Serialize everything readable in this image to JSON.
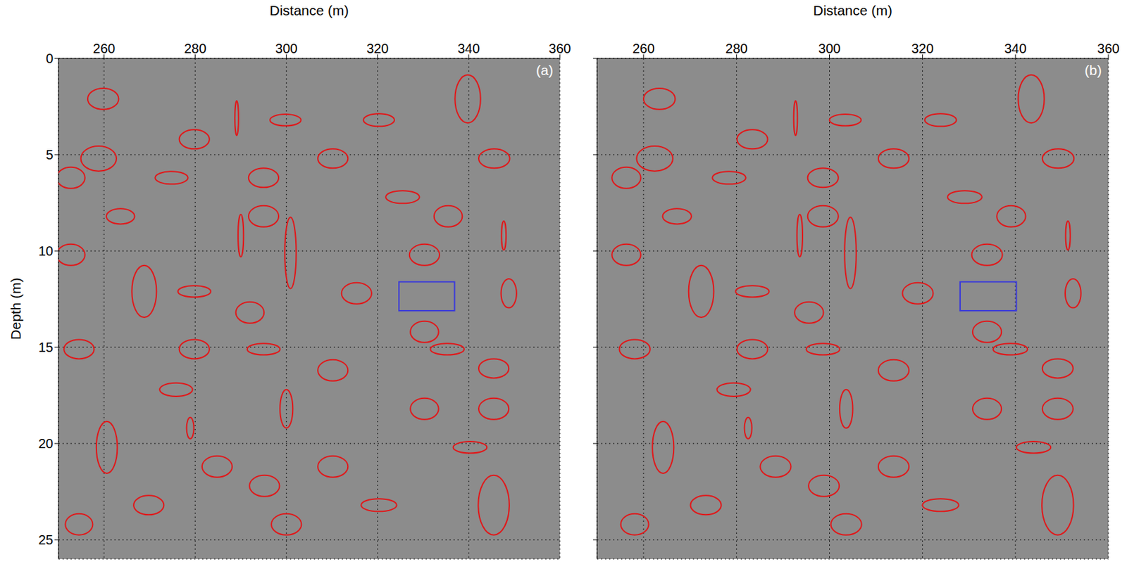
{
  "chart_data": [
    {
      "type": "annotation",
      "panel_label": "(a)",
      "x_label": "Distance (m)",
      "y_label": "Depth (m)",
      "xlim": [
        250,
        360
      ],
      "ylim": [
        0,
        26
      ],
      "xticks": [
        260,
        280,
        300,
        320,
        340,
        360
      ],
      "yticks": [
        0,
        5,
        10,
        15,
        20,
        25
      ],
      "grid": true,
      "series": [
        {
          "type": "ellipse",
          "color": "#e0191b",
          "values": [
            {
              "x": 259.8,
              "y": 2.1,
              "rx": 3.4,
              "ry": 0.55
            },
            {
              "x": 289.1,
              "y": 3.1,
              "rx": 0.4,
              "ry": 0.9
            },
            {
              "x": 299.8,
              "y": 3.2,
              "rx": 3.4,
              "ry": 0.3
            },
            {
              "x": 320.3,
              "y": 3.2,
              "rx": 3.4,
              "ry": 0.33
            },
            {
              "x": 339.8,
              "y": 2.1,
              "rx": 2.8,
              "ry": 1.25
            },
            {
              "x": 279.8,
              "y": 4.2,
              "rx": 3.3,
              "ry": 0.5
            },
            {
              "x": 258.8,
              "y": 5.2,
              "rx": 3.9,
              "ry": 0.65
            },
            {
              "x": 310.2,
              "y": 5.2,
              "rx": 3.3,
              "ry": 0.5
            },
            {
              "x": 345.6,
              "y": 5.2,
              "rx": 3.4,
              "ry": 0.5
            },
            {
              "x": 252.7,
              "y": 6.2,
              "rx": 3.1,
              "ry": 0.55
            },
            {
              "x": 274.8,
              "y": 6.2,
              "rx": 3.6,
              "ry": 0.33
            },
            {
              "x": 295.0,
              "y": 6.2,
              "rx": 3.3,
              "ry": 0.5
            },
            {
              "x": 325.5,
              "y": 7.2,
              "rx": 3.7,
              "ry": 0.33
            },
            {
              "x": 263.6,
              "y": 8.2,
              "rx": 3.1,
              "ry": 0.4
            },
            {
              "x": 295.0,
              "y": 8.2,
              "rx": 3.3,
              "ry": 0.55
            },
            {
              "x": 335.5,
              "y": 8.2,
              "rx": 3.1,
              "ry": 0.55
            },
            {
              "x": 290.0,
              "y": 9.2,
              "rx": 0.6,
              "ry": 1.1
            },
            {
              "x": 300.9,
              "y": 10.1,
              "rx": 1.25,
              "ry": 1.85
            },
            {
              "x": 347.7,
              "y": 9.2,
              "rx": 0.5,
              "ry": 0.75
            },
            {
              "x": 252.7,
              "y": 10.2,
              "rx": 3.1,
              "ry": 0.55
            },
            {
              "x": 330.3,
              "y": 10.2,
              "rx": 3.3,
              "ry": 0.55
            },
            {
              "x": 268.8,
              "y": 12.1,
              "rx": 2.7,
              "ry": 1.35
            },
            {
              "x": 279.8,
              "y": 12.1,
              "rx": 3.6,
              "ry": 0.3
            },
            {
              "x": 315.4,
              "y": 12.2,
              "rx": 3.3,
              "ry": 0.55
            },
            {
              "x": 348.8,
              "y": 12.2,
              "rx": 1.7,
              "ry": 0.75
            },
            {
              "x": 292.0,
              "y": 13.2,
              "rx": 3.1,
              "ry": 0.55
            },
            {
              "x": 330.3,
              "y": 14.2,
              "rx": 3.1,
              "ry": 0.55
            },
            {
              "x": 254.5,
              "y": 15.1,
              "rx": 3.3,
              "ry": 0.5
            },
            {
              "x": 279.8,
              "y": 15.1,
              "rx": 3.3,
              "ry": 0.5
            },
            {
              "x": 295.0,
              "y": 15.1,
              "rx": 3.6,
              "ry": 0.3
            },
            {
              "x": 335.3,
              "y": 15.1,
              "rx": 3.7,
              "ry": 0.3
            },
            {
              "x": 310.2,
              "y": 16.2,
              "rx": 3.3,
              "ry": 0.55
            },
            {
              "x": 345.5,
              "y": 16.1,
              "rx": 3.3,
              "ry": 0.5
            },
            {
              "x": 275.8,
              "y": 17.2,
              "rx": 3.6,
              "ry": 0.35
            },
            {
              "x": 300.0,
              "y": 18.2,
              "rx": 1.4,
              "ry": 1.0
            },
            {
              "x": 330.3,
              "y": 18.2,
              "rx": 3.1,
              "ry": 0.55
            },
            {
              "x": 345.5,
              "y": 18.2,
              "rx": 3.3,
              "ry": 0.55
            },
            {
              "x": 278.9,
              "y": 19.2,
              "rx": 0.8,
              "ry": 0.55
            },
            {
              "x": 260.6,
              "y": 20.2,
              "rx": 2.3,
              "ry": 1.35
            },
            {
              "x": 340.3,
              "y": 20.2,
              "rx": 3.7,
              "ry": 0.3
            },
            {
              "x": 284.8,
              "y": 21.2,
              "rx": 3.3,
              "ry": 0.55
            },
            {
              "x": 310.2,
              "y": 21.2,
              "rx": 3.3,
              "ry": 0.55
            },
            {
              "x": 295.2,
              "y": 22.2,
              "rx": 3.3,
              "ry": 0.55
            },
            {
              "x": 269.8,
              "y": 23.2,
              "rx": 3.3,
              "ry": 0.5
            },
            {
              "x": 320.3,
              "y": 23.2,
              "rx": 3.9,
              "ry": 0.33
            },
            {
              "x": 345.5,
              "y": 23.2,
              "rx": 3.4,
              "ry": 1.55
            },
            {
              "x": 254.5,
              "y": 24.2,
              "rx": 3.0,
              "ry": 0.55
            },
            {
              "x": 300.0,
              "y": 24.2,
              "rx": 3.3,
              "ry": 0.55
            }
          ]
        },
        {
          "type": "rectangle",
          "color": "#3c3cd8",
          "values": [
            {
              "x0": 324.7,
              "x1": 336.9,
              "y0": 11.6,
              "y1": 13.1
            }
          ]
        }
      ]
    },
    {
      "type": "annotation",
      "panel_label": "(b)",
      "x_label": "Distance (m)",
      "xlim": [
        250,
        360
      ],
      "ylim": [
        0,
        26
      ],
      "xticks": [
        260,
        280,
        300,
        320,
        340,
        360
      ],
      "yticks": [
        0,
        5,
        10,
        15,
        20,
        25
      ],
      "grid": true,
      "tick_labels": "x",
      "series": [
        {
          "type": "ellipse",
          "color": "#e0191b",
          "values": [
            {
              "x": 263.4,
              "y": 2.1,
              "rx": 3.4,
              "ry": 0.55
            },
            {
              "x": 292.7,
              "y": 3.1,
              "rx": 0.4,
              "ry": 0.9
            },
            {
              "x": 303.4,
              "y": 3.2,
              "rx": 3.4,
              "ry": 0.3
            },
            {
              "x": 323.9,
              "y": 3.2,
              "rx": 3.4,
              "ry": 0.33
            },
            {
              "x": 343.4,
              "y": 2.1,
              "rx": 2.8,
              "ry": 1.25
            },
            {
              "x": 283.4,
              "y": 4.2,
              "rx": 3.3,
              "ry": 0.5
            },
            {
              "x": 262.4,
              "y": 5.2,
              "rx": 3.9,
              "ry": 0.65
            },
            {
              "x": 313.8,
              "y": 5.2,
              "rx": 3.3,
              "ry": 0.5
            },
            {
              "x": 349.2,
              "y": 5.2,
              "rx": 3.4,
              "ry": 0.5
            },
            {
              "x": 256.3,
              "y": 6.2,
              "rx": 3.1,
              "ry": 0.55
            },
            {
              "x": 278.4,
              "y": 6.2,
              "rx": 3.6,
              "ry": 0.33
            },
            {
              "x": 298.6,
              "y": 6.2,
              "rx": 3.3,
              "ry": 0.5
            },
            {
              "x": 329.1,
              "y": 7.2,
              "rx": 3.7,
              "ry": 0.33
            },
            {
              "x": 267.2,
              "y": 8.2,
              "rx": 3.1,
              "ry": 0.4
            },
            {
              "x": 298.6,
              "y": 8.2,
              "rx": 3.3,
              "ry": 0.55
            },
            {
              "x": 339.1,
              "y": 8.2,
              "rx": 3.1,
              "ry": 0.55
            },
            {
              "x": 293.6,
              "y": 9.2,
              "rx": 0.6,
              "ry": 1.1
            },
            {
              "x": 304.5,
              "y": 10.1,
              "rx": 1.25,
              "ry": 1.85
            },
            {
              "x": 351.3,
              "y": 9.2,
              "rx": 0.5,
              "ry": 0.75
            },
            {
              "x": 256.3,
              "y": 10.2,
              "rx": 3.1,
              "ry": 0.55
            },
            {
              "x": 333.9,
              "y": 10.2,
              "rx": 3.3,
              "ry": 0.55
            },
            {
              "x": 272.4,
              "y": 12.1,
              "rx": 2.7,
              "ry": 1.35
            },
            {
              "x": 283.4,
              "y": 12.1,
              "rx": 3.6,
              "ry": 0.3
            },
            {
              "x": 319.0,
              "y": 12.2,
              "rx": 3.3,
              "ry": 0.55
            },
            {
              "x": 352.4,
              "y": 12.2,
              "rx": 1.7,
              "ry": 0.75
            },
            {
              "x": 295.6,
              "y": 13.2,
              "rx": 3.1,
              "ry": 0.55
            },
            {
              "x": 333.9,
              "y": 14.2,
              "rx": 3.1,
              "ry": 0.55
            },
            {
              "x": 258.1,
              "y": 15.1,
              "rx": 3.3,
              "ry": 0.5
            },
            {
              "x": 283.4,
              "y": 15.1,
              "rx": 3.3,
              "ry": 0.5
            },
            {
              "x": 298.6,
              "y": 15.1,
              "rx": 3.6,
              "ry": 0.3
            },
            {
              "x": 338.9,
              "y": 15.1,
              "rx": 3.7,
              "ry": 0.3
            },
            {
              "x": 313.8,
              "y": 16.2,
              "rx": 3.3,
              "ry": 0.55
            },
            {
              "x": 349.1,
              "y": 16.1,
              "rx": 3.3,
              "ry": 0.5
            },
            {
              "x": 279.4,
              "y": 17.2,
              "rx": 3.6,
              "ry": 0.35
            },
            {
              "x": 303.6,
              "y": 18.2,
              "rx": 1.4,
              "ry": 1.0
            },
            {
              "x": 333.9,
              "y": 18.2,
              "rx": 3.1,
              "ry": 0.55
            },
            {
              "x": 349.1,
              "y": 18.2,
              "rx": 3.3,
              "ry": 0.55
            },
            {
              "x": 282.5,
              "y": 19.2,
              "rx": 0.8,
              "ry": 0.55
            },
            {
              "x": 264.2,
              "y": 20.2,
              "rx": 2.3,
              "ry": 1.35
            },
            {
              "x": 343.9,
              "y": 20.2,
              "rx": 3.7,
              "ry": 0.3
            },
            {
              "x": 288.4,
              "y": 21.2,
              "rx": 3.3,
              "ry": 0.55
            },
            {
              "x": 313.8,
              "y": 21.2,
              "rx": 3.3,
              "ry": 0.55
            },
            {
              "x": 298.8,
              "y": 22.2,
              "rx": 3.3,
              "ry": 0.55
            },
            {
              "x": 273.4,
              "y": 23.2,
              "rx": 3.3,
              "ry": 0.5
            },
            {
              "x": 323.9,
              "y": 23.2,
              "rx": 3.9,
              "ry": 0.33
            },
            {
              "x": 349.1,
              "y": 23.2,
              "rx": 3.4,
              "ry": 1.55
            },
            {
              "x": 258.1,
              "y": 24.2,
              "rx": 3.0,
              "ry": 0.55
            },
            {
              "x": 303.6,
              "y": 24.2,
              "rx": 3.3,
              "ry": 0.55
            }
          ]
        },
        {
          "type": "rectangle",
          "color": "#3c3cd8",
          "values": [
            {
              "x0": 328.1,
              "x1": 340.2,
              "y0": 11.6,
              "y1": 13.1
            }
          ]
        }
      ]
    }
  ]
}
